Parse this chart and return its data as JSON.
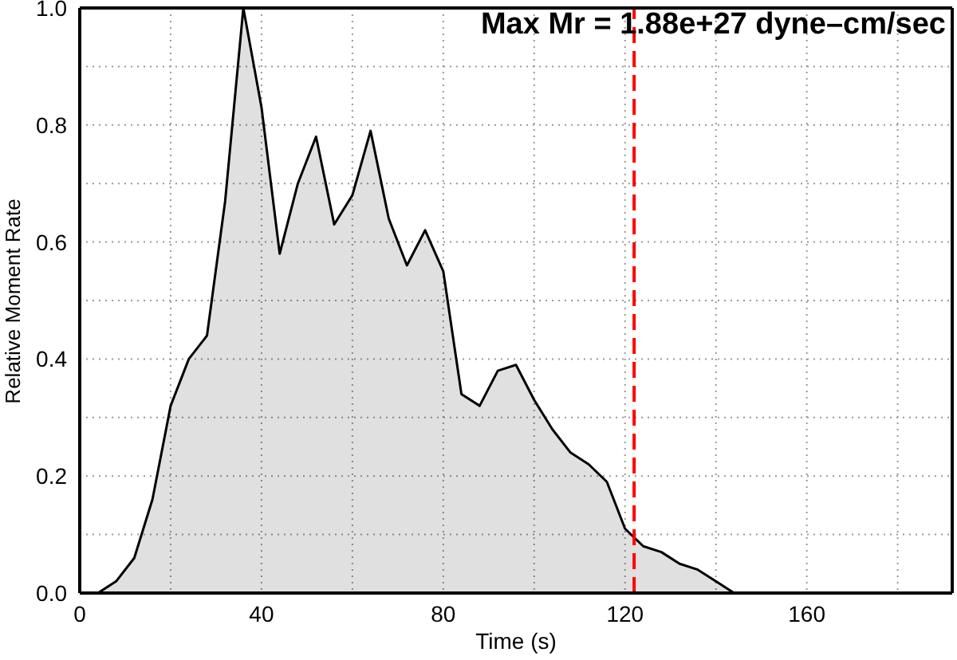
{
  "chart_data": {
    "type": "area",
    "xlabel": "Time (s)",
    "ylabel": "Relative Moment Rate",
    "annotations": [
      "Max Mr = 1.88e+27 dyne–cm/sec"
    ],
    "x": [
      4,
      8,
      12,
      16,
      20,
      24,
      28,
      32,
      36,
      40,
      44,
      48,
      52,
      56,
      60,
      64,
      68,
      72,
      76,
      80,
      84,
      88,
      92,
      96,
      100,
      104,
      108,
      112,
      116,
      120,
      124,
      128,
      132,
      136,
      140,
      144
    ],
    "values": [
      0,
      0.02,
      0.06,
      0.16,
      0.32,
      0.4,
      0.44,
      0.67,
      1.0,
      0.83,
      0.58,
      0.7,
      0.78,
      0.63,
      0.68,
      0.79,
      0.64,
      0.56,
      0.62,
      0.55,
      0.34,
      0.32,
      0.38,
      0.39,
      0.33,
      0.28,
      0.24,
      0.22,
      0.19,
      0.11,
      0.08,
      0.07,
      0.05,
      0.04,
      0.02,
      0
    ],
    "color": "#e0e0e0",
    "xlim": [
      0,
      192
    ],
    "xticks": [
      0,
      {
        "value": 20,
        "label": null
      },
      40,
      {
        "value": 60,
        "label": null
      },
      80,
      {
        "value": 100,
        "label": null
      },
      120,
      {
        "value": 140,
        "label": null
      },
      160,
      {
        "value": 180,
        "label": null
      }
    ],
    "ylim": [
      0,
      1
    ],
    "yticks": [
      {
        "value": 0,
        "label": "0.0"
      },
      {
        "value": 0.1,
        "label": null
      },
      {
        "value": 0.2,
        "label": "0.2"
      },
      {
        "value": 0.3,
        "label": null
      },
      {
        "value": 0.4,
        "label": "0.4"
      },
      {
        "value": 0.5,
        "label": null
      },
      {
        "value": 0.6,
        "label": "0.6"
      },
      {
        "value": 0.7,
        "label": null
      },
      {
        "value": 0.8,
        "label": "0.8"
      },
      {
        "value": 0.9,
        "label": null
      },
      {
        "value": 1,
        "label": "1.0"
      }
    ],
    "grid": true,
    "ref_lines": [
      {
        "axis": "x",
        "value": 122,
        "color": "#ff0000",
        "line_style": "dashed"
      }
    ]
  }
}
